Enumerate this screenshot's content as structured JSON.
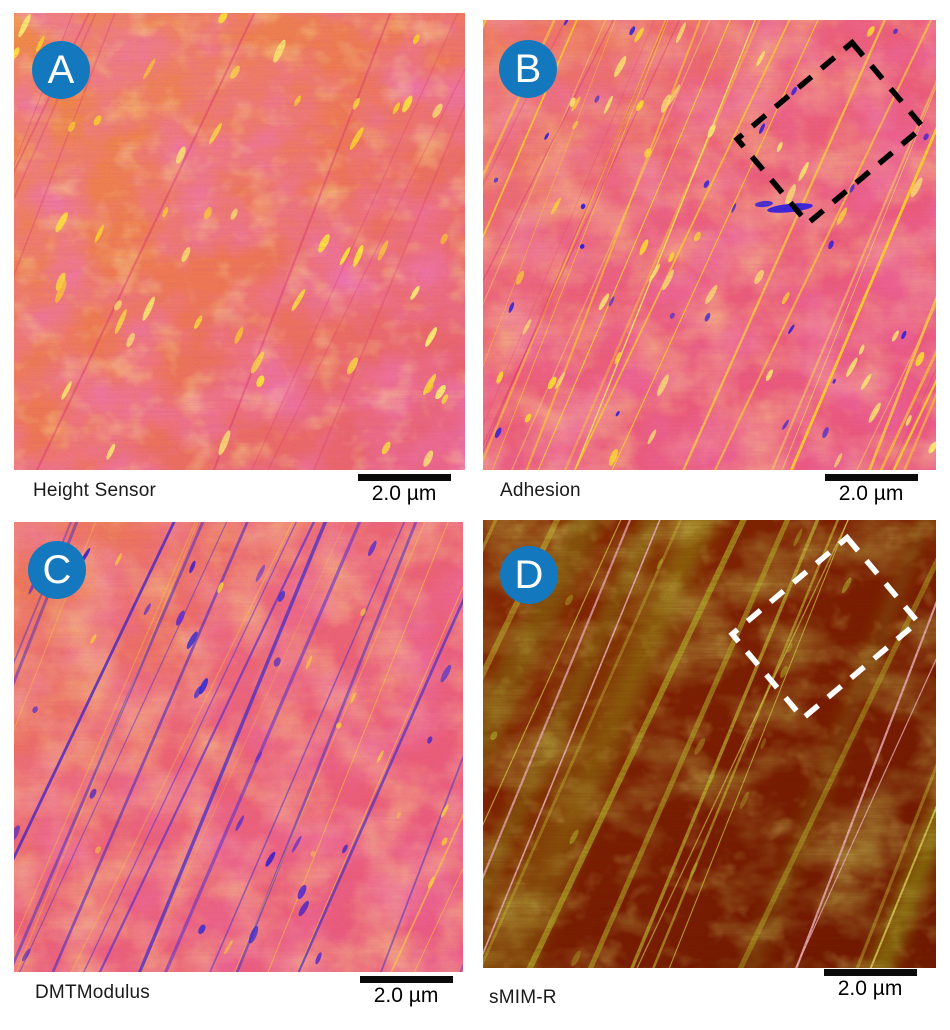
{
  "figure": {
    "background_color": "#ffffff",
    "badge_color": "#1478be",
    "badge_text_color": "#ffffff",
    "panels": [
      {
        "label": "A",
        "caption": "Height Sensor",
        "scale_bar_label": "2.0 µm",
        "palette": {
          "base": "#f2884c",
          "mottle": "#e23077",
          "flecks": "#ffe93a",
          "scratches": "#d62a6e"
        },
        "roi": null
      },
      {
        "label": "B",
        "caption": "Adhesion",
        "scale_bar_label": "2.0 µm",
        "palette": {
          "base": "#ef6078",
          "mottle": "#f5924a",
          "flecks": "#ffe22e",
          "specks": "#3226d8",
          "scratches": "#ffe22e"
        },
        "roi": {
          "shape": "rotated-rectangle",
          "stroke_style": "dashed",
          "color": "#000000"
        }
      },
      {
        "label": "C",
        "caption": "DMTModulus",
        "scale_bar_label": "2.0 µm",
        "palette": {
          "base": "#ee6674",
          "mottle": "#f5924a",
          "flecks": "#3a22c8",
          "scratches": "#4a2bc4"
        },
        "roi": null
      },
      {
        "label": "D",
        "caption": "sMIM-R",
        "scale_bar_label": "2.0 µm",
        "palette": {
          "base": "#7c1c03",
          "mottle": "#9aa21a",
          "flecks": "#d7dc4a",
          "scratches": "#b9bd2c",
          "highlight_lines": "#f3b9c6"
        },
        "roi": {
          "shape": "rotated-rectangle",
          "stroke_style": "dashed",
          "color": "#ffffff"
        }
      }
    ]
  }
}
